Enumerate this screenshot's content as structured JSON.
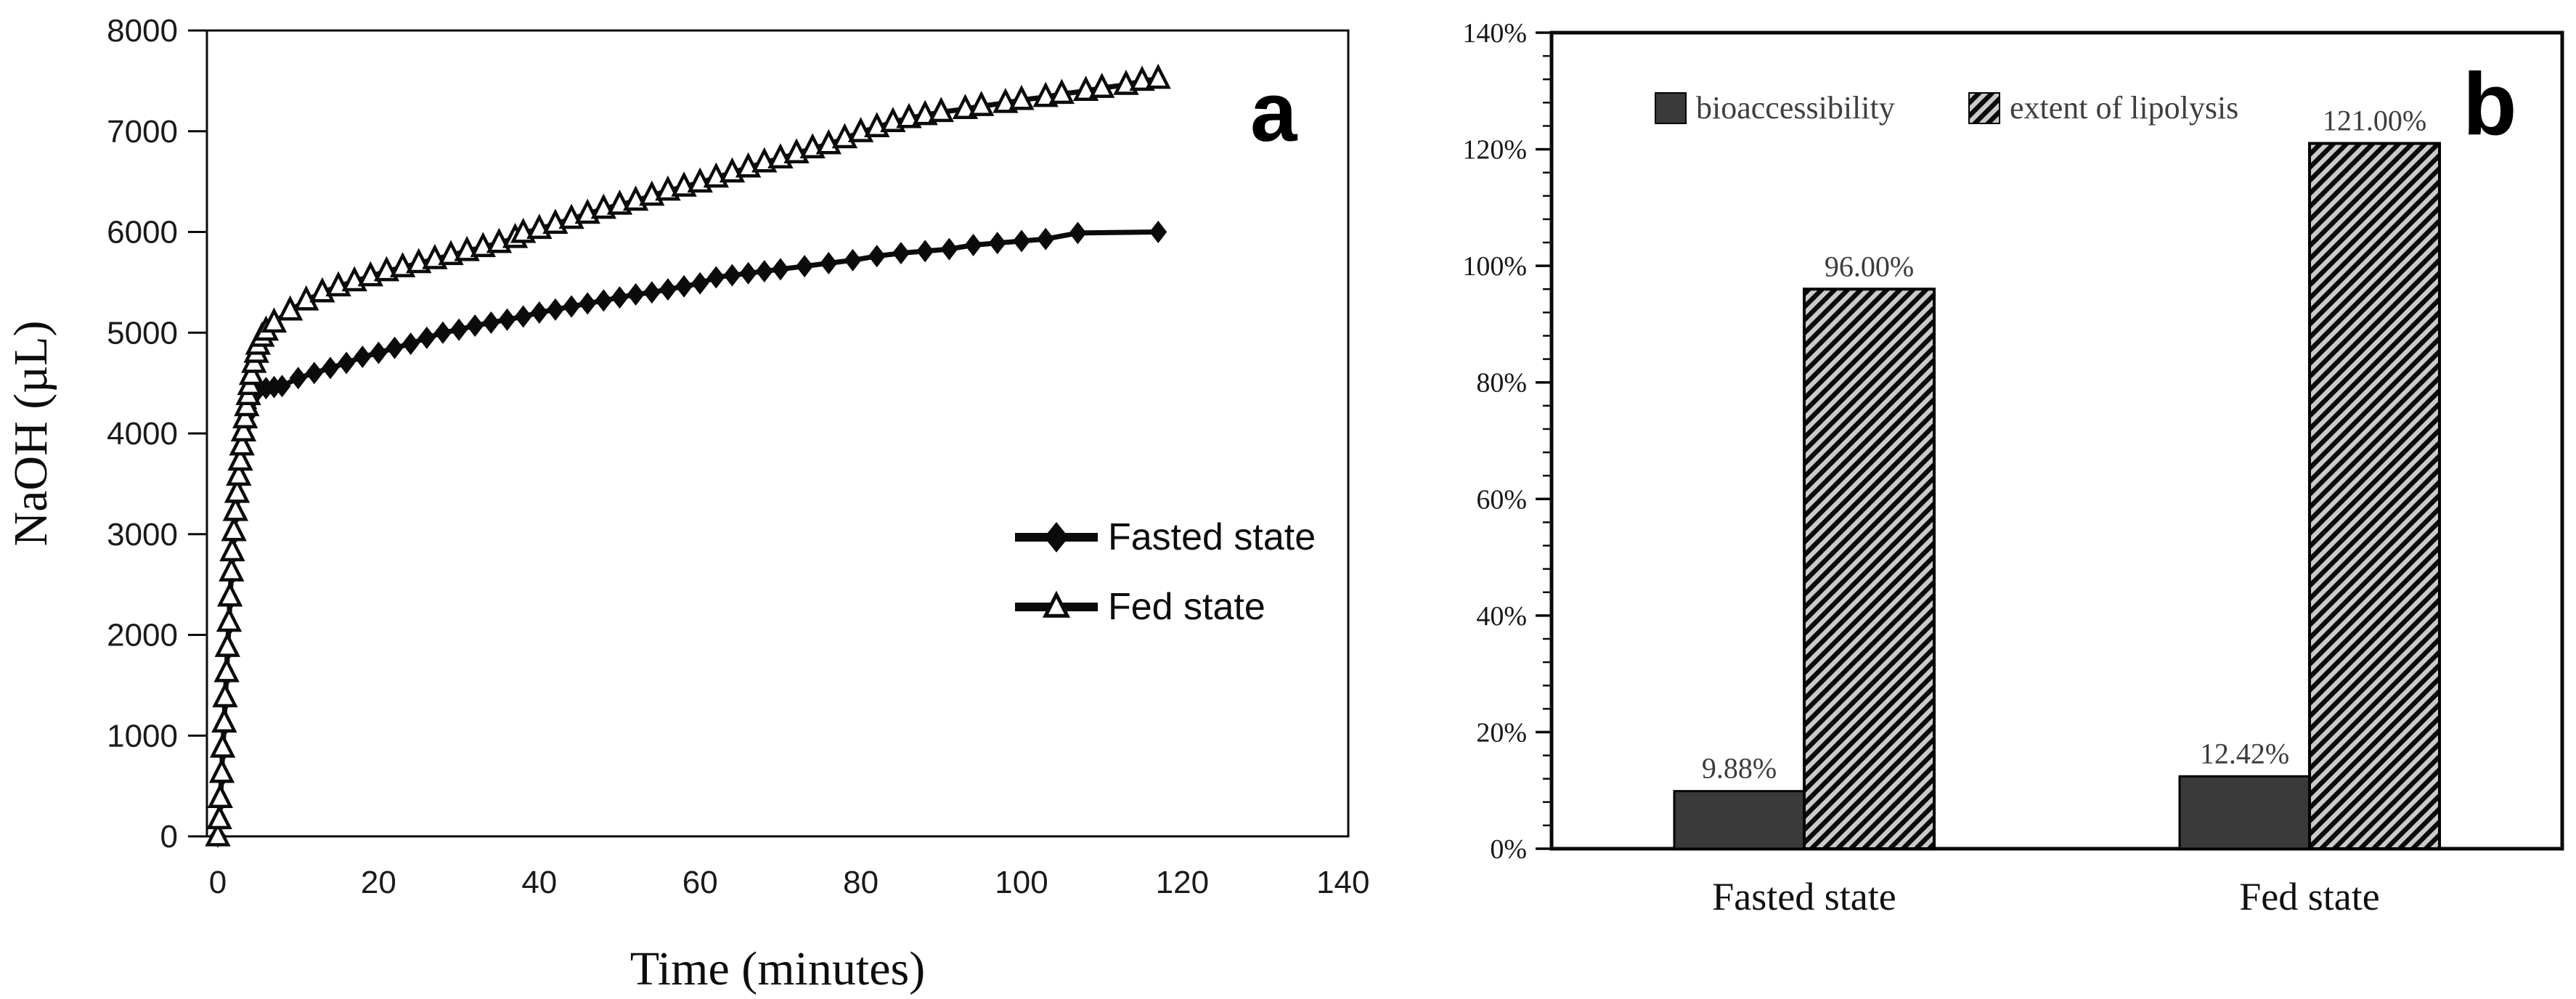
{
  "figure": {
    "background": "#ffffff",
    "panels": [
      {
        "label": "a"
      },
      {
        "label": "b"
      }
    ]
  },
  "chart_data": [
    {
      "id": "panel-a",
      "panel_label": "a",
      "type": "line",
      "title": "",
      "xlabel": "Time (minutes)",
      "ylabel": "NaOH (µL)",
      "xlim": [
        0,
        140
      ],
      "ylim": [
        0,
        8000
      ],
      "xticks": [
        0,
        20,
        40,
        60,
        80,
        100,
        120,
        140
      ],
      "yticks": [
        0,
        1000,
        2000,
        3000,
        4000,
        5000,
        6000,
        7000,
        8000
      ],
      "grid": false,
      "legend_position": "inside-middle-right",
      "line_color": "#0b0b0b",
      "series": [
        {
          "name": "Fasted state",
          "marker": "filled-diamond",
          "points": [
            [
              0,
              0
            ],
            [
              0.2,
              150
            ],
            [
              0.3,
              350
            ],
            [
              0.5,
              600
            ],
            [
              0.6,
              850
            ],
            [
              0.8,
              1100
            ],
            [
              0.9,
              1350
            ],
            [
              1.1,
              1600
            ],
            [
              1.2,
              1850
            ],
            [
              1.4,
              2100
            ],
            [
              1.5,
              2350
            ],
            [
              1.7,
              2600
            ],
            [
              1.8,
              2800
            ],
            [
              2.0,
              3000
            ],
            [
              2.2,
              3200
            ],
            [
              2.4,
              3380
            ],
            [
              2.6,
              3550
            ],
            [
              2.8,
              3700
            ],
            [
              3.0,
              3850
            ],
            [
              3.2,
              3980
            ],
            [
              3.4,
              4080
            ],
            [
              3.6,
              4170
            ],
            [
              3.8,
              4250
            ],
            [
              4.0,
              4310
            ],
            [
              4.3,
              4360
            ],
            [
              4.6,
              4400
            ],
            [
              5.0,
              4430
            ],
            [
              6.0,
              4450
            ],
            [
              7.0,
              4460
            ],
            [
              8,
              4470
            ],
            [
              10,
              4550
            ],
            [
              12,
              4600
            ],
            [
              14,
              4650
            ],
            [
              16,
              4700
            ],
            [
              18,
              4760
            ],
            [
              20,
              4800
            ],
            [
              22,
              4850
            ],
            [
              24,
              4890
            ],
            [
              26,
              4950
            ],
            [
              28,
              5000
            ],
            [
              30,
              5030
            ],
            [
              32,
              5070
            ],
            [
              34,
              5100
            ],
            [
              36,
              5130
            ],
            [
              38,
              5160
            ],
            [
              40,
              5200
            ],
            [
              42,
              5230
            ],
            [
              44,
              5260
            ],
            [
              46,
              5290
            ],
            [
              48,
              5320
            ],
            [
              50,
              5350
            ],
            [
              52,
              5380
            ],
            [
              54,
              5400
            ],
            [
              56,
              5430
            ],
            [
              58,
              5460
            ],
            [
              60,
              5490
            ],
            [
              62,
              5550
            ],
            [
              64,
              5570
            ],
            [
              66,
              5590
            ],
            [
              68,
              5610
            ],
            [
              70,
              5630
            ],
            [
              73,
              5660
            ],
            [
              76,
              5690
            ],
            [
              79,
              5720
            ],
            [
              82,
              5760
            ],
            [
              85,
              5790
            ],
            [
              88,
              5810
            ],
            [
              91,
              5830
            ],
            [
              94,
              5870
            ],
            [
              97,
              5890
            ],
            [
              100,
              5910
            ],
            [
              103,
              5930
            ],
            [
              107,
              5990
            ],
            [
              117,
              6000
            ]
          ]
        },
        {
          "name": "Fed state",
          "marker": "open-triangle",
          "points": [
            [
              0,
              0
            ],
            [
              0.2,
              170
            ],
            [
              0.3,
              380
            ],
            [
              0.5,
              630
            ],
            [
              0.6,
              880
            ],
            [
              0.8,
              1130
            ],
            [
              0.9,
              1380
            ],
            [
              1.1,
              1630
            ],
            [
              1.2,
              1880
            ],
            [
              1.4,
              2130
            ],
            [
              1.5,
              2380
            ],
            [
              1.7,
              2630
            ],
            [
              1.8,
              2830
            ],
            [
              2.0,
              3030
            ],
            [
              2.2,
              3230
            ],
            [
              2.4,
              3410
            ],
            [
              2.6,
              3580
            ],
            [
              2.8,
              3730
            ],
            [
              3.0,
              3880
            ],
            [
              3.2,
              4020
            ],
            [
              3.4,
              4150
            ],
            [
              3.6,
              4270
            ],
            [
              3.8,
              4380
            ],
            [
              4.0,
              4480
            ],
            [
              4.2,
              4580
            ],
            [
              4.5,
              4700
            ],
            [
              4.8,
              4800
            ],
            [
              5.0,
              4880
            ],
            [
              5.5,
              4960
            ],
            [
              6.0,
              5020
            ],
            [
              7,
              5100
            ],
            [
              9,
              5220
            ],
            [
              11,
              5320
            ],
            [
              13,
              5400
            ],
            [
              15,
              5460
            ],
            [
              17,
              5510
            ],
            [
              19,
              5560
            ],
            [
              21,
              5610
            ],
            [
              23,
              5650
            ],
            [
              25,
              5690
            ],
            [
              27,
              5730
            ],
            [
              29,
              5770
            ],
            [
              31,
              5810
            ],
            [
              33,
              5850
            ],
            [
              35,
              5890
            ],
            [
              37,
              5940
            ],
            [
              38,
              5990
            ],
            [
              40,
              6030
            ],
            [
              42,
              6080
            ],
            [
              44,
              6130
            ],
            [
              46,
              6180
            ],
            [
              48,
              6230
            ],
            [
              50,
              6270
            ],
            [
              52,
              6310
            ],
            [
              54,
              6360
            ],
            [
              56,
              6410
            ],
            [
              58,
              6450
            ],
            [
              60,
              6490
            ],
            [
              62,
              6540
            ],
            [
              64,
              6590
            ],
            [
              66,
              6640
            ],
            [
              68,
              6690
            ],
            [
              70,
              6730
            ],
            [
              72,
              6780
            ],
            [
              74,
              6830
            ],
            [
              76,
              6870
            ],
            [
              78,
              6930
            ],
            [
              80,
              6990
            ],
            [
              82,
              7040
            ],
            [
              84,
              7090
            ],
            [
              86,
              7130
            ],
            [
              88,
              7160
            ],
            [
              90,
              7190
            ],
            [
              93,
              7220
            ],
            [
              95,
              7250
            ],
            [
              98,
              7280
            ],
            [
              100,
              7310
            ],
            [
              103,
              7340
            ],
            [
              105,
              7370
            ],
            [
              108,
              7400
            ],
            [
              110,
              7430
            ],
            [
              113,
              7460
            ],
            [
              115,
              7500
            ],
            [
              117,
              7520
            ]
          ]
        }
      ]
    },
    {
      "id": "panel-b",
      "panel_label": "b",
      "type": "bar",
      "title": "",
      "xlabel": "",
      "ylabel": "",
      "categories": [
        "Fasted state",
        "Fed state"
      ],
      "series": [
        {
          "name": "bioaccessibility",
          "style": "solid",
          "fill": "#3a3a3a",
          "values": [
            9.88,
            12.42
          ],
          "data_labels": [
            "9.88%",
            "12.42%"
          ]
        },
        {
          "name": "extent of lipolysis",
          "style": "diagonal-hatch",
          "fill": "#cacaca",
          "hatch_color": "#0a0a0a",
          "values": [
            96.0,
            121.0
          ],
          "data_labels": [
            "96.00%",
            "121.00%"
          ]
        }
      ],
      "ylim": [
        0,
        140
      ],
      "yticks": [
        0,
        20,
        40,
        60,
        80,
        100,
        120,
        140
      ],
      "ytick_labels": [
        "0%",
        "20%",
        "40%",
        "60%",
        "80%",
        "100%",
        "120%",
        "140%"
      ],
      "minor_tick_unit": 4,
      "grid": false,
      "legend_position": "top-inside"
    }
  ]
}
